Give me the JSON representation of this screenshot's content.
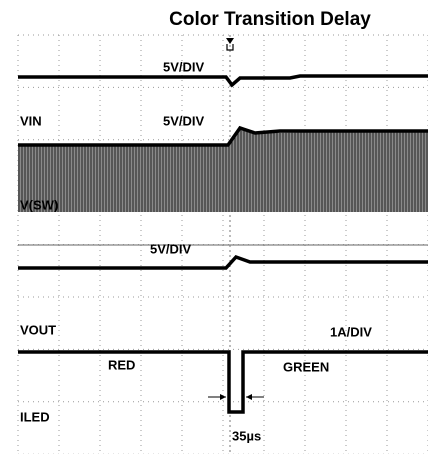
{
  "title": "Color Transition Delay",
  "labels": {
    "ch1_scale": "5V/DIV",
    "vin": "VIN",
    "ch2_scale": "5V/DIV",
    "vsw": "V(SW)",
    "ch3_scale": "5V/DIV",
    "vout": "VOUT",
    "ch4_scale": "1A/DIV",
    "red": "RED",
    "green": "GREEN",
    "iled": "ILED",
    "delay": "35µs"
  }
}
